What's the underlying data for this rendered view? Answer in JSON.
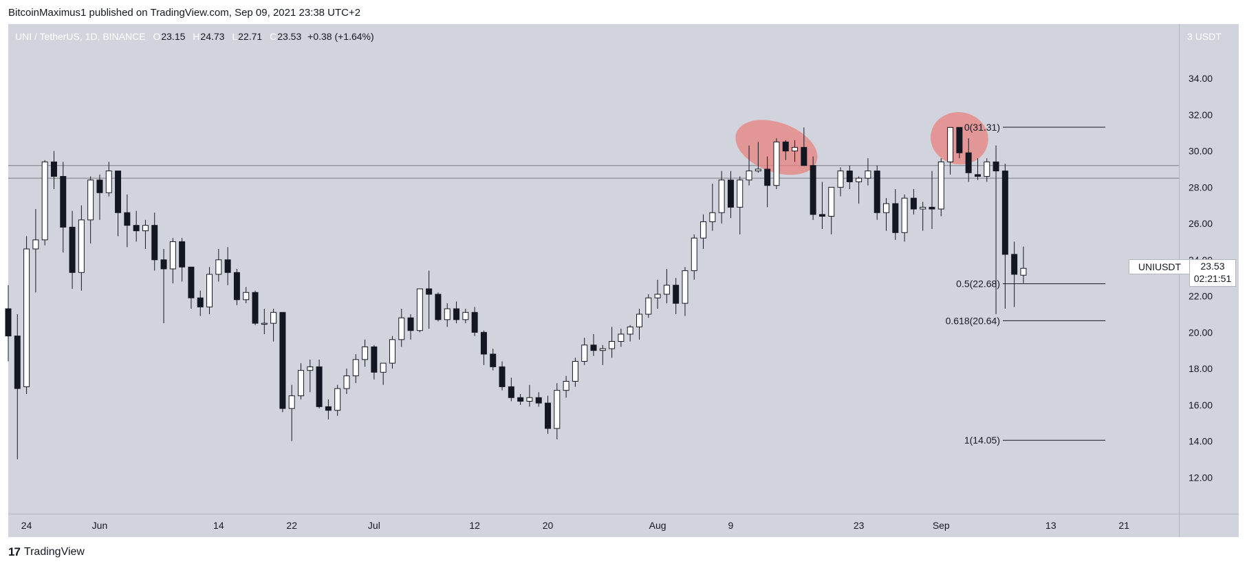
{
  "header": {
    "text": "BitcoinMaximus1 published on TradingView.com, Sep 09, 2021 23:38 UTC+2"
  },
  "symbol": {
    "name": "UNI / TetherUS, 1D, BINANCE",
    "o_label": "O",
    "o": "23.15",
    "h_label": "H",
    "h": "24.73",
    "l_label": "L",
    "l": "22.71",
    "c_label": "C",
    "c": "23.53",
    "change": "+0.38 (+1.64%)"
  },
  "currency": "USDT",
  "price_badge": {
    "name": "UNIUSDT",
    "price": "23.53",
    "countdown": "02:21:51"
  },
  "footer": {
    "brand": "TradingView",
    "logo_text": "17"
  },
  "colors": {
    "background": "#d1d4dc",
    "up": "#ffffff",
    "down": "#131722",
    "highlight": "#e8827f"
  },
  "chart_data": {
    "type": "candlestick",
    "title": "UNI / TetherUS, 1D, BINANCE",
    "yticks": [
      12,
      14,
      16,
      18,
      20,
      22,
      24,
      26,
      28,
      30,
      32,
      34
    ],
    "ytick_labels": [
      "12.00",
      "14.00",
      "16.00",
      "18.00",
      "20.00",
      "22.00",
      "24.00",
      "26.00",
      "28.00",
      "30.00",
      "32.00",
      "34.00"
    ],
    "ylim": [
      10,
      37
    ],
    "xtick_labels": [
      {
        "label": "24",
        "date": "2021-05-24"
      },
      {
        "label": "Jun",
        "date": "2021-06-01"
      },
      {
        "label": "14",
        "date": "2021-06-14"
      },
      {
        "label": "22",
        "date": "2021-06-22"
      },
      {
        "label": "Jul",
        "date": "2021-07-01"
      },
      {
        "label": "12",
        "date": "2021-07-12"
      },
      {
        "label": "20",
        "date": "2021-07-20"
      },
      {
        "label": "Aug",
        "date": "2021-08-01"
      },
      {
        "label": "9",
        "date": "2021-08-09"
      },
      {
        "label": "23",
        "date": "2021-08-23"
      },
      {
        "label": "Sep",
        "date": "2021-09-01"
      },
      {
        "label": "13",
        "date": "2021-09-13"
      },
      {
        "label": "21",
        "date": "2021-09-21"
      }
    ],
    "x_range": [
      "2021-05-22",
      "2021-09-27"
    ],
    "candles": [
      {
        "date": "2021-05-22",
        "o": 21.3,
        "h": 22.6,
        "l": 18.4,
        "c": 19.8
      },
      {
        "date": "2021-05-23",
        "o": 19.8,
        "h": 21.0,
        "l": 13.0,
        "c": 16.9
      },
      {
        "date": "2021-05-24",
        "o": 17.0,
        "h": 25.3,
        "l": 16.6,
        "c": 24.6
      },
      {
        "date": "2021-05-25",
        "o": 24.6,
        "h": 26.8,
        "l": 22.2,
        "c": 25.1
      },
      {
        "date": "2021-05-26",
        "o": 25.1,
        "h": 29.5,
        "l": 24.8,
        "c": 29.4
      },
      {
        "date": "2021-05-27",
        "o": 29.4,
        "h": 30.0,
        "l": 27.9,
        "c": 28.6
      },
      {
        "date": "2021-05-28",
        "o": 28.6,
        "h": 29.4,
        "l": 24.4,
        "c": 25.8
      },
      {
        "date": "2021-05-29",
        "o": 25.8,
        "h": 26.7,
        "l": 22.4,
        "c": 23.3
      },
      {
        "date": "2021-05-30",
        "o": 23.3,
        "h": 27.0,
        "l": 22.3,
        "c": 26.2
      },
      {
        "date": "2021-05-31",
        "o": 26.2,
        "h": 28.6,
        "l": 24.9,
        "c": 28.4
      },
      {
        "date": "2021-06-01",
        "o": 28.4,
        "h": 28.7,
        "l": 26.2,
        "c": 27.7
      },
      {
        "date": "2021-06-02",
        "o": 27.7,
        "h": 29.4,
        "l": 27.5,
        "c": 28.9
      },
      {
        "date": "2021-06-03",
        "o": 28.9,
        "h": 28.9,
        "l": 25.3,
        "c": 26.6
      },
      {
        "date": "2021-06-04",
        "o": 26.6,
        "h": 27.6,
        "l": 24.7,
        "c": 25.9
      },
      {
        "date": "2021-06-05",
        "o": 25.9,
        "h": 26.7,
        "l": 25.0,
        "c": 25.6
      },
      {
        "date": "2021-06-06",
        "o": 25.6,
        "h": 26.2,
        "l": 24.6,
        "c": 25.9
      },
      {
        "date": "2021-06-07",
        "o": 25.9,
        "h": 26.6,
        "l": 23.4,
        "c": 24.0
      },
      {
        "date": "2021-06-08",
        "o": 24.0,
        "h": 24.6,
        "l": 20.5,
        "c": 23.5
      },
      {
        "date": "2021-06-09",
        "o": 23.5,
        "h": 25.2,
        "l": 22.7,
        "c": 25.0
      },
      {
        "date": "2021-06-10",
        "o": 25.0,
        "h": 25.2,
        "l": 22.8,
        "c": 23.6
      },
      {
        "date": "2021-06-11",
        "o": 23.6,
        "h": 23.6,
        "l": 21.3,
        "c": 21.9
      },
      {
        "date": "2021-06-12",
        "o": 21.9,
        "h": 22.3,
        "l": 20.9,
        "c": 21.4
      },
      {
        "date": "2021-06-13",
        "o": 21.4,
        "h": 23.6,
        "l": 21.0,
        "c": 23.2
      },
      {
        "date": "2021-06-14",
        "o": 23.2,
        "h": 24.6,
        "l": 22.8,
        "c": 24.0
      },
      {
        "date": "2021-06-15",
        "o": 24.0,
        "h": 24.7,
        "l": 22.6,
        "c": 23.3
      },
      {
        "date": "2021-06-16",
        "o": 23.3,
        "h": 23.5,
        "l": 21.5,
        "c": 21.8
      },
      {
        "date": "2021-06-17",
        "o": 21.8,
        "h": 22.5,
        "l": 21.6,
        "c": 22.2
      },
      {
        "date": "2021-06-18",
        "o": 22.2,
        "h": 22.3,
        "l": 20.4,
        "c": 20.5
      },
      {
        "date": "2021-06-19",
        "o": 20.5,
        "h": 21.3,
        "l": 19.9,
        "c": 20.5
      },
      {
        "date": "2021-06-20",
        "o": 20.5,
        "h": 21.3,
        "l": 19.5,
        "c": 21.1
      },
      {
        "date": "2021-06-21",
        "o": 21.1,
        "h": 21.1,
        "l": 15.6,
        "c": 15.8
      },
      {
        "date": "2021-06-22",
        "o": 15.8,
        "h": 17.1,
        "l": 14.0,
        "c": 16.5
      },
      {
        "date": "2021-06-23",
        "o": 16.5,
        "h": 18.3,
        "l": 16.3,
        "c": 17.9
      },
      {
        "date": "2021-06-24",
        "o": 17.9,
        "h": 18.5,
        "l": 16.7,
        "c": 18.1
      },
      {
        "date": "2021-06-25",
        "o": 18.1,
        "h": 18.5,
        "l": 15.8,
        "c": 15.9
      },
      {
        "date": "2021-06-26",
        "o": 15.9,
        "h": 16.3,
        "l": 15.2,
        "c": 15.7
      },
      {
        "date": "2021-06-27",
        "o": 15.7,
        "h": 17.1,
        "l": 15.4,
        "c": 16.9
      },
      {
        "date": "2021-06-28",
        "o": 16.9,
        "h": 18.0,
        "l": 16.6,
        "c": 17.6
      },
      {
        "date": "2021-06-29",
        "o": 17.6,
        "h": 18.8,
        "l": 17.2,
        "c": 18.5
      },
      {
        "date": "2021-06-30",
        "o": 18.5,
        "h": 19.6,
        "l": 18.1,
        "c": 19.2
      },
      {
        "date": "2021-07-01",
        "o": 19.2,
        "h": 19.3,
        "l": 17.4,
        "c": 17.8
      },
      {
        "date": "2021-07-02",
        "o": 17.8,
        "h": 18.3,
        "l": 17.1,
        "c": 18.3
      },
      {
        "date": "2021-07-03",
        "o": 18.3,
        "h": 19.8,
        "l": 18.0,
        "c": 19.6
      },
      {
        "date": "2021-07-04",
        "o": 19.6,
        "h": 21.3,
        "l": 19.2,
        "c": 20.8
      },
      {
        "date": "2021-07-05",
        "o": 20.8,
        "h": 21.0,
        "l": 19.6,
        "c": 20.1
      },
      {
        "date": "2021-07-06",
        "o": 20.1,
        "h": 22.4,
        "l": 20.0,
        "c": 22.4
      },
      {
        "date": "2021-07-07",
        "o": 22.4,
        "h": 23.4,
        "l": 20.2,
        "c": 22.1
      },
      {
        "date": "2021-07-08",
        "o": 22.1,
        "h": 22.2,
        "l": 20.6,
        "c": 20.7
      },
      {
        "date": "2021-07-09",
        "o": 20.7,
        "h": 21.6,
        "l": 20.3,
        "c": 21.3
      },
      {
        "date": "2021-07-10",
        "o": 21.3,
        "h": 21.7,
        "l": 20.5,
        "c": 20.7
      },
      {
        "date": "2021-07-11",
        "o": 20.7,
        "h": 21.3,
        "l": 20.5,
        "c": 21.1
      },
      {
        "date": "2021-07-12",
        "o": 21.1,
        "h": 21.4,
        "l": 19.8,
        "c": 20.0
      },
      {
        "date": "2021-07-13",
        "o": 20.0,
        "h": 20.1,
        "l": 18.2,
        "c": 18.8
      },
      {
        "date": "2021-07-14",
        "o": 18.8,
        "h": 19.1,
        "l": 17.9,
        "c": 18.1
      },
      {
        "date": "2021-07-15",
        "o": 18.1,
        "h": 18.4,
        "l": 16.8,
        "c": 17.0
      },
      {
        "date": "2021-07-16",
        "o": 17.0,
        "h": 17.5,
        "l": 16.2,
        "c": 16.4
      },
      {
        "date": "2021-07-17",
        "o": 16.4,
        "h": 16.6,
        "l": 16.0,
        "c": 16.2
      },
      {
        "date": "2021-07-18",
        "o": 16.2,
        "h": 17.1,
        "l": 15.9,
        "c": 16.4
      },
      {
        "date": "2021-07-19",
        "o": 16.4,
        "h": 16.7,
        "l": 15.9,
        "c": 16.1
      },
      {
        "date": "2021-07-20",
        "o": 16.1,
        "h": 16.5,
        "l": 14.4,
        "c": 14.7
      },
      {
        "date": "2021-07-21",
        "o": 14.7,
        "h": 17.2,
        "l": 14.1,
        "c": 16.8
      },
      {
        "date": "2021-07-22",
        "o": 16.8,
        "h": 17.6,
        "l": 16.4,
        "c": 17.3
      },
      {
        "date": "2021-07-23",
        "o": 17.3,
        "h": 18.6,
        "l": 17.0,
        "c": 18.4
      },
      {
        "date": "2021-07-24",
        "o": 18.4,
        "h": 19.7,
        "l": 18.2,
        "c": 19.3
      },
      {
        "date": "2021-07-25",
        "o": 19.3,
        "h": 19.9,
        "l": 18.7,
        "c": 19.0
      },
      {
        "date": "2021-07-26",
        "o": 19.0,
        "h": 19.3,
        "l": 18.2,
        "c": 19.1
      },
      {
        "date": "2021-07-27",
        "o": 19.1,
        "h": 20.3,
        "l": 18.6,
        "c": 19.5
      },
      {
        "date": "2021-07-28",
        "o": 19.5,
        "h": 20.2,
        "l": 19.2,
        "c": 19.9
      },
      {
        "date": "2021-07-29",
        "o": 19.9,
        "h": 20.4,
        "l": 19.5,
        "c": 20.3
      },
      {
        "date": "2021-07-30",
        "o": 20.3,
        "h": 21.3,
        "l": 19.6,
        "c": 21.0
      },
      {
        "date": "2021-07-31",
        "o": 21.0,
        "h": 22.1,
        "l": 20.8,
        "c": 21.9
      },
      {
        "date": "2021-08-01",
        "o": 21.9,
        "h": 22.9,
        "l": 21.3,
        "c": 22.1
      },
      {
        "date": "2021-08-02",
        "o": 22.1,
        "h": 23.5,
        "l": 21.6,
        "c": 22.6
      },
      {
        "date": "2021-08-03",
        "o": 22.6,
        "h": 23.0,
        "l": 21.0,
        "c": 21.6
      },
      {
        "date": "2021-08-04",
        "o": 21.6,
        "h": 23.6,
        "l": 20.9,
        "c": 23.4
      },
      {
        "date": "2021-08-05",
        "o": 23.4,
        "h": 25.4,
        "l": 22.9,
        "c": 25.2
      },
      {
        "date": "2021-08-06",
        "o": 25.2,
        "h": 26.5,
        "l": 24.6,
        "c": 26.1
      },
      {
        "date": "2021-08-07",
        "o": 26.1,
        "h": 28.2,
        "l": 25.6,
        "c": 26.6
      },
      {
        "date": "2021-08-08",
        "o": 26.6,
        "h": 28.9,
        "l": 26.0,
        "c": 28.4
      },
      {
        "date": "2021-08-09",
        "o": 28.4,
        "h": 28.9,
        "l": 26.3,
        "c": 26.9
      },
      {
        "date": "2021-08-10",
        "o": 26.9,
        "h": 28.6,
        "l": 25.4,
        "c": 28.4
      },
      {
        "date": "2021-08-11",
        "o": 28.4,
        "h": 30.3,
        "l": 28.1,
        "c": 28.9
      },
      {
        "date": "2021-08-12",
        "o": 28.9,
        "h": 30.5,
        "l": 28.8,
        "c": 29.0
      },
      {
        "date": "2021-08-13",
        "o": 29.0,
        "h": 29.7,
        "l": 26.9,
        "c": 28.1
      },
      {
        "date": "2021-08-14",
        "o": 28.1,
        "h": 30.7,
        "l": 27.9,
        "c": 30.5
      },
      {
        "date": "2021-08-15",
        "o": 30.5,
        "h": 30.6,
        "l": 29.5,
        "c": 30.0
      },
      {
        "date": "2021-08-16",
        "o": 30.0,
        "h": 30.6,
        "l": 29.4,
        "c": 30.2
      },
      {
        "date": "2021-08-17",
        "o": 30.2,
        "h": 31.3,
        "l": 29.2,
        "c": 29.2
      },
      {
        "date": "2021-08-18",
        "o": 29.2,
        "h": 29.7,
        "l": 26.2,
        "c": 26.5
      },
      {
        "date": "2021-08-19",
        "o": 26.5,
        "h": 28.3,
        "l": 25.7,
        "c": 26.4
      },
      {
        "date": "2021-08-20",
        "o": 26.4,
        "h": 28.0,
        "l": 25.4,
        "c": 28.0
      },
      {
        "date": "2021-08-21",
        "o": 28.0,
        "h": 29.1,
        "l": 27.5,
        "c": 28.9
      },
      {
        "date": "2021-08-22",
        "o": 28.9,
        "h": 29.2,
        "l": 27.9,
        "c": 28.3
      },
      {
        "date": "2021-08-23",
        "o": 28.3,
        "h": 28.6,
        "l": 27.1,
        "c": 28.5
      },
      {
        "date": "2021-08-24",
        "o": 28.5,
        "h": 29.6,
        "l": 28.1,
        "c": 28.9
      },
      {
        "date": "2021-08-25",
        "o": 28.9,
        "h": 29.2,
        "l": 26.2,
        "c": 26.6
      },
      {
        "date": "2021-08-26",
        "o": 26.6,
        "h": 27.4,
        "l": 25.6,
        "c": 27.1
      },
      {
        "date": "2021-08-27",
        "o": 27.1,
        "h": 27.9,
        "l": 25.1,
        "c": 25.5
      },
      {
        "date": "2021-08-28",
        "o": 25.5,
        "h": 27.6,
        "l": 25.0,
        "c": 27.4
      },
      {
        "date": "2021-08-29",
        "o": 27.4,
        "h": 27.9,
        "l": 26.5,
        "c": 26.8
      },
      {
        "date": "2021-08-30",
        "o": 26.8,
        "h": 27.2,
        "l": 25.6,
        "c": 26.9
      },
      {
        "date": "2021-08-31",
        "o": 26.9,
        "h": 28.9,
        "l": 25.7,
        "c": 26.8
      },
      {
        "date": "2021-09-01",
        "o": 26.8,
        "h": 29.6,
        "l": 26.4,
        "c": 29.4
      },
      {
        "date": "2021-09-02",
        "o": 29.4,
        "h": 31.3,
        "l": 28.7,
        "c": 31.3
      },
      {
        "date": "2021-09-03",
        "o": 31.3,
        "h": 31.2,
        "l": 29.6,
        "c": 29.9
      },
      {
        "date": "2021-09-04",
        "o": 29.9,
        "h": 30.7,
        "l": 28.3,
        "c": 28.8
      },
      {
        "date": "2021-09-05",
        "o": 28.7,
        "h": 29.6,
        "l": 28.4,
        "c": 28.6
      },
      {
        "date": "2021-09-06",
        "o": 28.6,
        "h": 29.6,
        "l": 28.3,
        "c": 29.4
      },
      {
        "date": "2021-09-07",
        "o": 29.4,
        "h": 30.3,
        "l": 21.0,
        "c": 28.9
      },
      {
        "date": "2021-09-08",
        "o": 28.9,
        "h": 29.3,
        "l": 21.3,
        "c": 24.3
      },
      {
        "date": "2021-09-09",
        "o": 24.3,
        "h": 25.0,
        "l": 21.4,
        "c": 23.2
      },
      {
        "date": "2021-09-10",
        "o": 23.15,
        "h": 24.73,
        "l": 22.71,
        "c": 23.53
      }
    ],
    "horizontal_lines": [
      29.2,
      28.5
    ],
    "fibonacci": [
      {
        "label": "0(31.31)",
        "value": 31.31
      },
      {
        "label": "0.5(22.68)",
        "value": 22.68
      },
      {
        "label": "0.618(20.64)",
        "value": 20.64
      },
      {
        "label": "1(14.05)",
        "value": 14.05
      }
    ],
    "highlights": [
      {
        "center_date": "2021-08-14",
        "center_value": 30.2
      },
      {
        "center_date": "2021-09-03",
        "center_value": 30.7
      }
    ]
  }
}
